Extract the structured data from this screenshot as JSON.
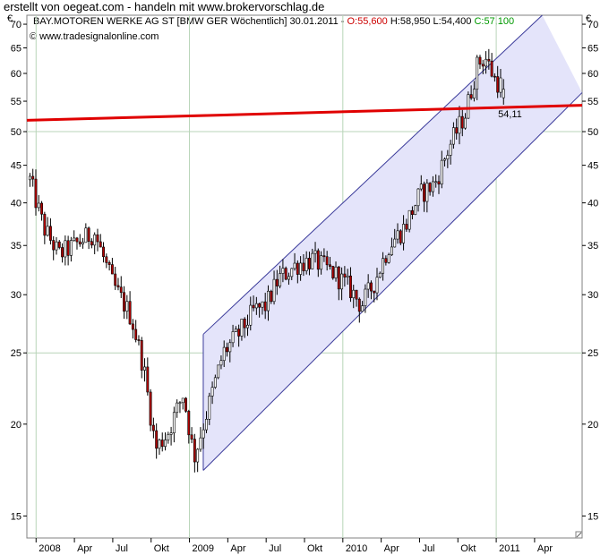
{
  "banner": "erstellt von oegeat.com - handeln mit www.brokervorschlag.de",
  "header": {
    "instrument": "BAY.MOTOREN WERKE AG ST [BMW GER  Wöchentlich] 30.01.2011 - ",
    "open": "O:55,600",
    "high": "H:58,950",
    "low": "L:54,400",
    "close": "C:57,100",
    "copyright": "© www.tradesignalonline.com",
    "currency_left": "€",
    "currency_right": "€"
  },
  "colors": {
    "up": "#ffffff",
    "down": "#b00000",
    "outline": "#000000",
    "support": "#e00000",
    "channel_fill": "#e4e4fa",
    "channel_line": "#3a3a9a",
    "grid_major": "#b8d4b8",
    "open_label": "#cc0000",
    "close_label": "#009900",
    "support_label": "#cc0000"
  },
  "chart_data": {
    "type": "candlestick",
    "scale": "log",
    "ylim": [
      14,
      72
    ],
    "y_ticks": [
      15,
      20,
      25,
      30,
      35,
      40,
      45,
      50,
      55,
      60,
      65,
      70
    ],
    "x_range": [
      2007.94,
      2011.56
    ],
    "x_ticks": [
      {
        "label": "2008",
        "x": 2008.0,
        "major": true
      },
      {
        "label": "Apr",
        "x": 2008.25,
        "major": false
      },
      {
        "label": "Jul",
        "x": 2008.5,
        "major": false
      },
      {
        "label": "Okt",
        "x": 2008.75,
        "major": false
      },
      {
        "label": "2009",
        "x": 2009.0,
        "major": true
      },
      {
        "label": "Apr",
        "x": 2009.25,
        "major": false
      },
      {
        "label": "Jul",
        "x": 2009.5,
        "major": false
      },
      {
        "label": "Okt",
        "x": 2009.75,
        "major": false
      },
      {
        "label": "2010",
        "x": 2010.0,
        "major": true
      },
      {
        "label": "Apr",
        "x": 2010.25,
        "major": false
      },
      {
        "label": "Jul",
        "x": 2010.5,
        "major": false
      },
      {
        "label": "Okt",
        "x": 2010.75,
        "major": false
      },
      {
        "label": "2011",
        "x": 2011.0,
        "major": true
      },
      {
        "label": "Apr",
        "x": 2011.25,
        "major": false
      }
    ],
    "support_line": {
      "x1": 2007.94,
      "y1": 51.8,
      "x2": 2011.56,
      "y2": 54.3,
      "label": "54,11"
    },
    "channel": {
      "upper": {
        "x1": 2009.09,
        "y1": 26.5,
        "x2": 2011.3,
        "y2": 72
      },
      "lower": {
        "x1": 2009.09,
        "y1": 17.3,
        "x2": 2011.56,
        "y2": 56.5
      }
    },
    "anchors": [
      [
        2007.96,
        43
      ],
      [
        2008.05,
        37
      ],
      [
        2008.15,
        34
      ],
      [
        2008.25,
        35
      ],
      [
        2008.38,
        36.5
      ],
      [
        2008.5,
        31
      ],
      [
        2008.62,
        28
      ],
      [
        2008.7,
        24
      ],
      [
        2008.78,
        18.5
      ],
      [
        2008.86,
        19.5
      ],
      [
        2008.96,
        22
      ],
      [
        2009.03,
        18
      ],
      [
        2009.12,
        21
      ],
      [
        2009.22,
        25
      ],
      [
        2009.32,
        26.5
      ],
      [
        2009.42,
        28.5
      ],
      [
        2009.5,
        29
      ],
      [
        2009.58,
        31.5
      ],
      [
        2009.7,
        33
      ],
      [
        2009.8,
        33.5
      ],
      [
        2009.95,
        32
      ],
      [
        2010.05,
        30.5
      ],
      [
        2010.12,
        29
      ],
      [
        2010.2,
        31
      ],
      [
        2010.3,
        35
      ],
      [
        2010.4,
        37
      ],
      [
        2010.5,
        41
      ],
      [
        2010.6,
        42.5
      ],
      [
        2010.7,
        48
      ],
      [
        2010.8,
        53
      ],
      [
        2010.88,
        62
      ],
      [
        2010.93,
        63
      ],
      [
        2010.99,
        59
      ],
      [
        2011.06,
        57.1
      ]
    ],
    "last_candle": {
      "open": 55.6,
      "high": 58.95,
      "low": 54.4,
      "close": 57.1
    }
  }
}
